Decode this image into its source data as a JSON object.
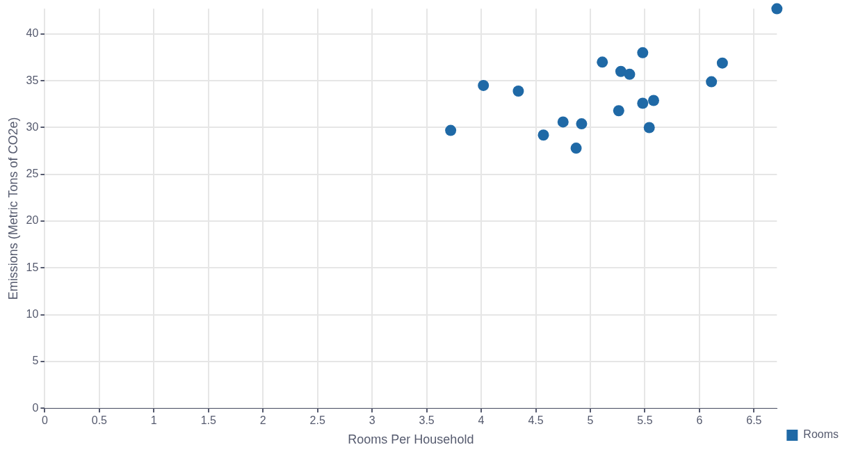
{
  "chart_data": {
    "type": "scatter",
    "xlabel": "Rooms Per Household",
    "ylabel": "Emissions (Metric Tons of CO2e)",
    "series": [
      {
        "name": "Rooms",
        "color": "#1f69a6",
        "x": [
          3.72,
          4.02,
          4.34,
          4.57,
          4.75,
          4.87,
          4.92,
          5.11,
          5.26,
          5.28,
          5.36,
          5.48,
          5.48,
          5.54,
          5.58,
          6.11,
          6.21,
          6.71
        ],
        "values": [
          29.7,
          34.5,
          33.9,
          29.2,
          30.6,
          27.8,
          30.4,
          37.0,
          31.8,
          36.0,
          35.7,
          38.0,
          32.6,
          30.0,
          32.9,
          34.9,
          36.9,
          42.7
        ]
      }
    ],
    "xlim": [
      0,
      6.71
    ],
    "ylim": [
      0,
      42.7
    ],
    "xticks": [
      0,
      0.5,
      1,
      1.5,
      2,
      2.5,
      3,
      3.5,
      4,
      4.5,
      5,
      5.5,
      6,
      6.5
    ],
    "yticks": [
      0,
      5,
      10,
      15,
      20,
      25,
      30,
      35,
      40
    ],
    "grid": true,
    "legend": "bottom right",
    "marker": "circle"
  }
}
